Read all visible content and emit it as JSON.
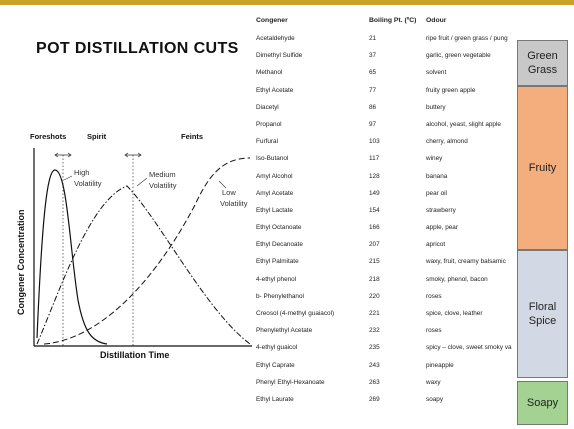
{
  "title": "POT DISTILLATION CUTS",
  "diagram": {
    "cuts": [
      "Foreshots",
      "Spirit",
      "Feints"
    ],
    "curve_labels": {
      "high": [
        "High",
        "Volatility"
      ],
      "medium": [
        "Medium",
        "Volatility"
      ],
      "low": [
        "Low",
        "Volatility"
      ]
    },
    "ylabel": "Congener Concentration",
    "xlabel": "Distillation Time"
  },
  "table": {
    "headers": [
      "Congener",
      "Boiling Pt. (ºC)",
      "Odour"
    ],
    "rows": [
      [
        "Acetaldehyde",
        "21",
        "ripe fruit / green grass / pung"
      ],
      [
        "Dimethyl Sulfide",
        "37",
        "garlic, green vegetable"
      ],
      [
        "Methanol",
        "65",
        "solvent"
      ],
      [
        "Ethyl Acetate",
        "77",
        "fruity green apple"
      ],
      [
        "Diacetyl",
        "86",
        "buttery"
      ],
      [
        "Propanol",
        "97",
        "alcohol, yeast, slight apple"
      ],
      [
        "Furfural",
        "103",
        "cherry, almond"
      ],
      [
        "Iso-Butanol",
        "117",
        "winey"
      ],
      [
        " Amyl Alcohol",
        "128",
        "banana"
      ],
      [
        "Amyl Acetate",
        "149",
        "pear oil"
      ],
      [
        "Ethyl Lactate",
        "154",
        "strawberry"
      ],
      [
        "Ethyl Octanoate",
        "166",
        "apple, pear"
      ],
      [
        "Ethyl Decanoate",
        "207",
        "apricot"
      ],
      [
        "Ethyl Palmitate",
        "215",
        "waxy, fruit, creamy balsamic"
      ],
      [
        "4-ethyl phenol",
        "218",
        "smoky, phenol, bacon"
      ],
      [
        "b- Phenylethanol",
        "220",
        "roses"
      ],
      [
        "Creosol (4-methyl guaiacol)",
        "221",
        "spice, clove, leather"
      ],
      [
        "Phenylethyl Acetate",
        " 232",
        "roses"
      ],
      [
        "4-ethyl guaicol",
        "235",
        "spicy – clove, sweet smoky va"
      ],
      [
        "Ethyl Caprate",
        "243",
        "pineapple"
      ],
      [
        "Phenyl Ethyl-Hexanoate",
        "263",
        "waxy"
      ],
      [
        "Ethyl Laurate",
        "269",
        "soapy"
      ]
    ]
  },
  "categories": {
    "green": [
      "Green",
      "Grass"
    ],
    "fruity": [
      "Fruity"
    ],
    "floral": [
      "Floral",
      "Spice"
    ],
    "soapy": [
      "Soapy"
    ]
  }
}
